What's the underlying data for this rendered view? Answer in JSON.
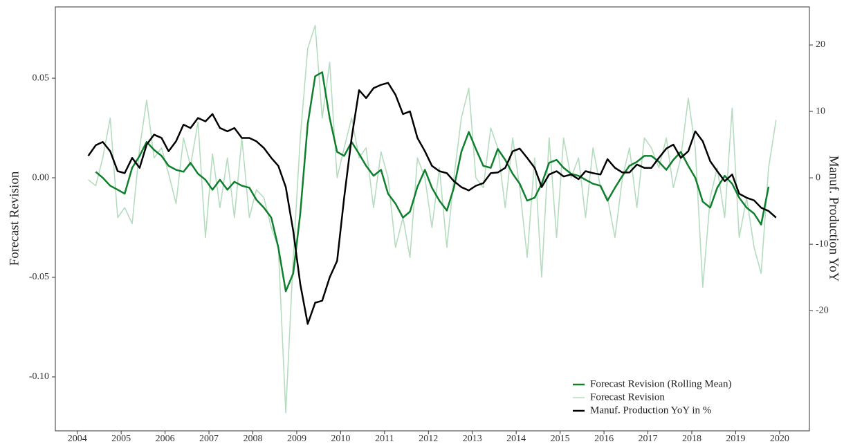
{
  "chart_data": {
    "type": "line",
    "ylabel": "Forecast Revision",
    "y2label": "Manuf. Production YoY",
    "x": [
      2004.25,
      2004.42,
      2004.58,
      2004.75,
      2004.92,
      2005.08,
      2005.25,
      2005.42,
      2005.58,
      2005.75,
      2005.92,
      2006.08,
      2006.25,
      2006.42,
      2006.58,
      2006.75,
      2006.92,
      2007.08,
      2007.25,
      2007.42,
      2007.58,
      2007.75,
      2007.92,
      2008.08,
      2008.25,
      2008.42,
      2008.58,
      2008.75,
      2008.92,
      2009.08,
      2009.25,
      2009.42,
      2009.58,
      2009.75,
      2009.92,
      2010.08,
      2010.25,
      2010.42,
      2010.58,
      2010.75,
      2010.92,
      2011.08,
      2011.25,
      2011.42,
      2011.58,
      2011.75,
      2011.92,
      2012.08,
      2012.25,
      2012.42,
      2012.58,
      2012.75,
      2012.92,
      2013.08,
      2013.25,
      2013.42,
      2013.58,
      2013.75,
      2013.92,
      2014.08,
      2014.25,
      2014.42,
      2014.58,
      2014.75,
      2014.92,
      2015.08,
      2015.25,
      2015.42,
      2015.58,
      2015.75,
      2015.92,
      2016.08,
      2016.25,
      2016.42,
      2016.58,
      2016.75,
      2016.92,
      2017.08,
      2017.25,
      2017.42,
      2017.58,
      2017.75,
      2017.92,
      2018.08,
      2018.25,
      2018.42,
      2018.58,
      2018.75,
      2018.92,
      2019.08,
      2019.25,
      2019.42,
      2019.58,
      2019.75,
      2019.92
    ],
    "series": [
      {
        "name": "Forecast Revision",
        "color": "#b5dcbf",
        "values": [
          -0.001,
          -0.004,
          0.01,
          0.03,
          -0.02,
          -0.015,
          -0.023,
          0.015,
          0.039,
          0.01,
          0.015,
          0.002,
          -0.013,
          0.02,
          0.006,
          0.028,
          -0.03,
          0.012,
          -0.015,
          0.01,
          -0.02,
          0.02,
          -0.02,
          -0.006,
          -0.01,
          -0.025,
          -0.035,
          -0.118,
          -0.04,
          0.02,
          0.065,
          0.0765,
          0.03,
          0.058,
          0.0,
          0.015,
          0.03,
          0.01,
          0.015,
          -0.015,
          0.013,
          0.0,
          -0.035,
          -0.02,
          -0.04,
          0.01,
          0.0,
          -0.025,
          0.005,
          -0.035,
          0.0,
          0.03,
          0.045,
          0.0,
          -0.005,
          0.025,
          0.015,
          -0.015,
          0.02,
          -0.005,
          -0.04,
          0.01,
          -0.05,
          0.02,
          -0.03,
          0.02,
          0.0,
          0.01,
          -0.02,
          0.015,
          -0.005,
          -0.01,
          -0.03,
          0.0,
          0.015,
          -0.015,
          0.02,
          0.015,
          0.005,
          0.02,
          -0.005,
          0.01,
          0.04,
          0.015,
          -0.055,
          -0.01,
          0.005,
          -0.02,
          0.035,
          -0.03,
          -0.01,
          -0.035,
          -0.048,
          0.005,
          0.029
        ]
      },
      {
        "name": "Forecast Revision (Rolling Mean)",
        "color": "#0e7f2c",
        "values": [
          null,
          0.003,
          0.0,
          -0.004,
          -0.006,
          -0.008,
          0.005,
          0.011,
          0.018,
          0.014,
          0.011,
          0.006,
          0.004,
          0.003,
          0.0075,
          0.002,
          -0.001,
          -0.006,
          -0.001,
          -0.006,
          -0.002,
          -0.004,
          -0.005,
          -0.011,
          -0.015,
          -0.02,
          -0.035,
          -0.057,
          -0.048,
          -0.018,
          0.027,
          0.051,
          0.053,
          0.03,
          0.013,
          0.011,
          0.018,
          0.012,
          0.006,
          0.001,
          0.004,
          -0.008,
          -0.013,
          -0.02,
          -0.017,
          -0.0045,
          0.004,
          -0.005,
          -0.0115,
          -0.0165,
          -0.005,
          0.013,
          0.023,
          0.0145,
          0.006,
          0.005,
          0.0145,
          0.009,
          0.002,
          -0.003,
          -0.0115,
          -0.01,
          -0.003,
          0.0075,
          0.009,
          0.005,
          0.002,
          0.001,
          -0.001,
          -0.003,
          -0.004,
          -0.0115,
          -0.005,
          0.001,
          0.006,
          0.008,
          0.011,
          0.011,
          0.008,
          0.004,
          0.009,
          0.013,
          0.006,
          0.0,
          -0.012,
          -0.015,
          -0.005,
          0.001,
          -0.003,
          -0.01,
          -0.015,
          -0.018,
          -0.0235,
          -0.0045,
          null
        ]
      },
      {
        "name": "Manuf. Production YoY in %",
        "color": "#000000",
        "axis": "y2",
        "values": [
          3.3,
          4.9,
          5.4,
          4.0,
          1.0,
          0.7,
          3.0,
          1.5,
          5.0,
          6.5,
          6.0,
          4.0,
          5.5,
          8.0,
          7.5,
          9.0,
          8.5,
          9.6,
          7.5,
          7.0,
          7.5,
          6.0,
          6.0,
          5.5,
          4.5,
          3.0,
          1.8,
          -1.4,
          -8.0,
          -16.0,
          -22.0,
          -18.8,
          -18.5,
          -15.0,
          -12.5,
          -3.0,
          6.0,
          13.2,
          12.0,
          13.5,
          14.0,
          14.3,
          12.5,
          9.6,
          10.0,
          6.0,
          4.0,
          1.8,
          1.0,
          0.7,
          -0.5,
          -1.4,
          -1.9,
          -1.2,
          -0.8,
          0.7,
          0.8,
          1.5,
          4.0,
          4.4,
          3.0,
          1.5,
          -1.4,
          0.5,
          1.0,
          0.2,
          0.5,
          -0.2,
          1.0,
          0.7,
          0.5,
          2.8,
          1.5,
          0.8,
          0.8,
          2.0,
          1.5,
          1.5,
          3.0,
          4.4,
          5.0,
          3.0,
          4.0,
          7.0,
          5.5,
          2.5,
          1.0,
          -0.5,
          0.5,
          -2.4,
          -3.0,
          -3.4,
          -4.5,
          -5.0,
          -6.0
        ]
      }
    ],
    "legend_order": [
      1,
      0,
      2
    ],
    "legend": "lower right",
    "xlim": [
      2003.5,
      2020.68
    ],
    "xticks": [
      2004,
      2005,
      2006,
      2007,
      2008,
      2009,
      2010,
      2011,
      2012,
      2013,
      2014,
      2015,
      2016,
      2017,
      2018,
      2019,
      2020
    ],
    "ylim": [
      -0.1271,
      0.0858
    ],
    "yticks": [
      {
        "value": -0.1,
        "label": "-0.10"
      },
      -0.05,
      {
        "value": 0,
        "label": "0.00"
      },
      0.05
    ],
    "y2lim": [
      -38.1,
      25.73
    ],
    "y2ticks": [
      -20,
      -10,
      0,
      10,
      20
    ]
  }
}
